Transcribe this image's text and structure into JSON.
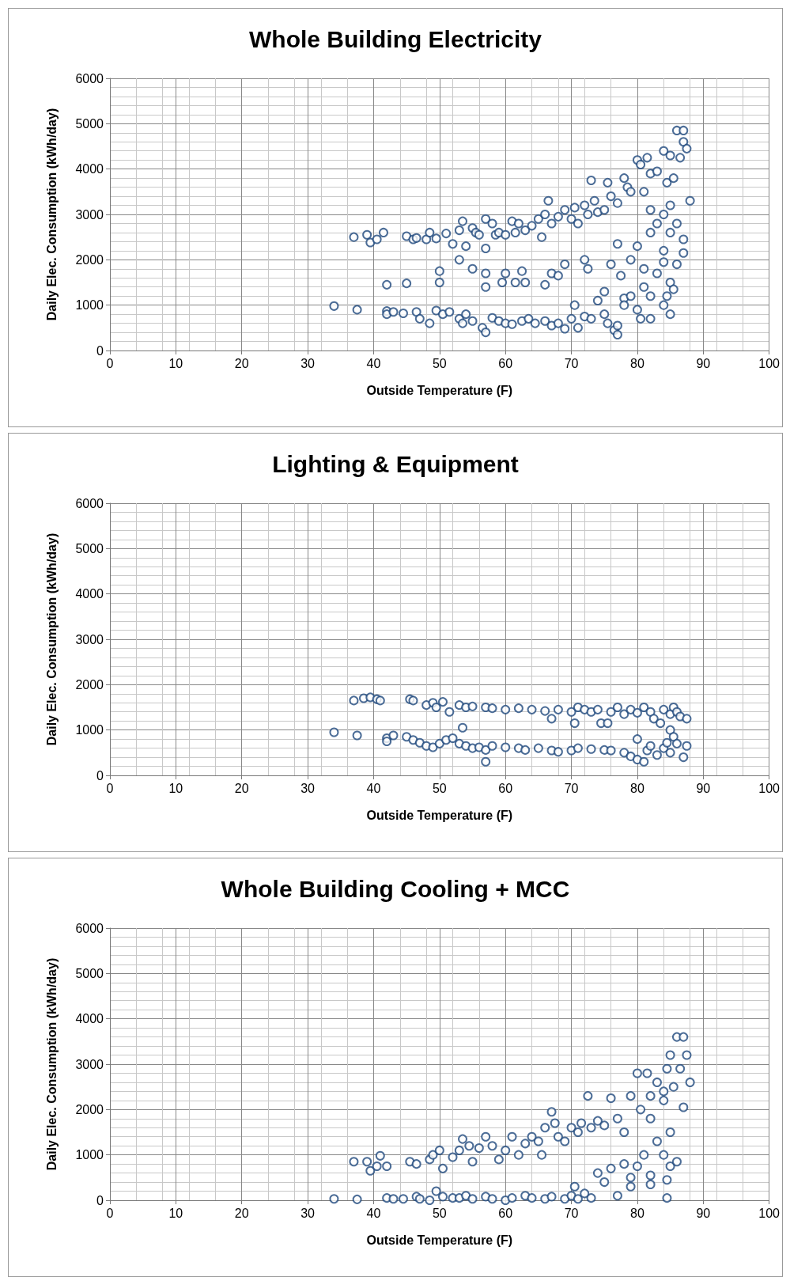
{
  "chart_data": [
    {
      "type": "scatter",
      "title": "Whole Building Electricity",
      "xlabel": "Outside Temperature (F)",
      "ylabel": "Daily Elec. Consumption (kWh/day)",
      "xlim": [
        0,
        100
      ],
      "ylim": [
        0,
        6000
      ],
      "xticks": [
        0,
        10,
        20,
        30,
        40,
        50,
        60,
        70,
        80,
        90,
        100
      ],
      "yticks": [
        0,
        1000,
        2000,
        3000,
        4000,
        5000,
        6000
      ],
      "grid": true,
      "marker": "circle",
      "color": "#1f497d",
      "x": [
        37,
        39,
        39.5,
        40.5,
        41.5,
        45,
        46,
        46.5,
        48,
        48.5,
        49.5,
        51,
        52,
        53,
        53.5,
        54,
        55,
        55.5,
        56,
        57,
        57,
        58,
        58.5,
        59,
        60,
        61,
        61.5,
        62,
        63,
        64,
        65,
        65.5,
        66,
        66.5,
        67,
        68,
        69,
        70,
        70.5,
        71,
        72,
        72.5,
        73,
        73.5,
        74,
        75,
        75.5,
        76,
        77,
        78,
        78.5,
        79,
        80,
        80.5,
        81.5,
        82,
        82,
        83,
        84,
        84.5,
        85,
        85.5,
        86,
        86.5,
        87,
        87,
        87.5,
        88,
        85,
        84,
        83,
        82,
        81,
        86,
        85,
        84,
        87,
        87,
        42,
        45,
        50,
        50,
        53,
        55,
        57,
        57,
        59.5,
        60,
        61.5,
        62.5,
        63,
        66,
        67,
        68,
        69,
        72,
        72.5,
        75,
        76,
        77,
        77.5,
        78,
        79,
        80,
        81,
        81,
        82,
        83,
        84,
        85,
        85.5,
        86,
        84.5,
        34,
        37.5,
        42,
        42,
        43,
        44.5,
        46.5,
        47,
        48.5,
        49.5,
        50.5,
        51.5,
        53,
        53.5,
        54,
        55,
        56.5,
        57,
        58,
        59,
        60,
        61,
        62.5,
        63.5,
        64.5,
        66,
        67,
        68,
        69,
        70,
        70.5,
        71,
        72,
        73,
        74,
        75,
        75.5,
        76.5,
        77,
        77,
        78,
        79,
        80,
        80.5,
        82,
        85,
        84
      ],
      "values": [
        2500,
        2550,
        2380,
        2450,
        2600,
        2520,
        2450,
        2480,
        2450,
        2600,
        2470,
        2580,
        2350,
        2650,
        2850,
        2300,
        2700,
        2600,
        2550,
        2900,
        2250,
        2800,
        2550,
        2600,
        2550,
        2850,
        2600,
        2800,
        2650,
        2750,
        2900,
        2500,
        3000,
        3300,
        2800,
        2950,
        3100,
        2900,
        3150,
        2800,
        3200,
        3000,
        3750,
        3300,
        3050,
        3100,
        3700,
        3400,
        3250,
        3800,
        3600,
        3500,
        4200,
        4100,
        4250,
        3900,
        2600,
        3950,
        4400,
        3700,
        4300,
        3800,
        4850,
        4250,
        4600,
        4850,
        4450,
        3300,
        3200,
        3000,
        2800,
        3100,
        3500,
        2800,
        2600,
        2200,
        2450,
        2150,
        1450,
        1480,
        1750,
        1500,
        2000,
        1800,
        1400,
        1700,
        1500,
        1700,
        1500,
        1750,
        1500,
        1450,
        1700,
        1650,
        1900,
        2000,
        1800,
        1300,
        1900,
        2350,
        1650,
        1150,
        2000,
        2300,
        1800,
        1400,
        1200,
        1700,
        1950,
        1500,
        1350,
        1900,
        1200,
        980,
        900,
        870,
        800,
        850,
        820,
        850,
        700,
        600,
        880,
        800,
        850,
        700,
        600,
        800,
        650,
        500,
        400,
        720,
        650,
        600,
        580,
        650,
        700,
        600,
        650,
        550,
        600,
        480,
        700,
        1000,
        500,
        750,
        700,
        1100,
        800,
        600,
        450,
        550,
        350,
        1000,
        1200,
        900,
        700,
        700,
        800,
        1000
      ]
    },
    {
      "type": "scatter",
      "title": "Lighting & Equipment",
      "xlabel": "Outside Temperature (F)",
      "ylabel": "Daily Elec. Consumption (kWh/day)",
      "xlim": [
        0,
        100
      ],
      "ylim": [
        0,
        6000
      ],
      "xticks": [
        0,
        10,
        20,
        30,
        40,
        50,
        60,
        70,
        80,
        90,
        100
      ],
      "yticks": [
        0,
        1000,
        2000,
        3000,
        4000,
        5000,
        6000
      ],
      "grid": true,
      "marker": "circle",
      "color": "#1f497d",
      "x": [
        37,
        38.5,
        39.5,
        40.5,
        41,
        45.5,
        46,
        48,
        49,
        49.5,
        50.5,
        51.5,
        53,
        54,
        55,
        57,
        58,
        60,
        62,
        64,
        66,
        67,
        68,
        70,
        71,
        72,
        73,
        74,
        74.5,
        76,
        77,
        78,
        79,
        80,
        81,
        82,
        82.5,
        84,
        85,
        85.5,
        86,
        86.5,
        87.5,
        85,
        85.5,
        83.5,
        75.5,
        70.5,
        34,
        37.5,
        42,
        42,
        43,
        45,
        46,
        47,
        48,
        49,
        50,
        51,
        52,
        53,
        53.5,
        54,
        55,
        56,
        57,
        57,
        58,
        60,
        62,
        63,
        65,
        67,
        68,
        70,
        71,
        73,
        75,
        76,
        78,
        79,
        80,
        81,
        81.5,
        82,
        83,
        84,
        85,
        86,
        87,
        87.5,
        80,
        84.5
      ],
      "values": [
        1650,
        1700,
        1720,
        1680,
        1650,
        1680,
        1650,
        1550,
        1600,
        1500,
        1620,
        1400,
        1550,
        1500,
        1520,
        1500,
        1480,
        1450,
        1480,
        1450,
        1420,
        1250,
        1450,
        1400,
        1500,
        1450,
        1400,
        1450,
        1150,
        1400,
        1500,
        1350,
        1450,
        1380,
        1500,
        1400,
        1250,
        1450,
        1350,
        1500,
        1400,
        1300,
        1250,
        1000,
        850,
        1150,
        1150,
        1150,
        950,
        880,
        820,
        750,
        880,
        850,
        780,
        720,
        650,
        620,
        700,
        780,
        820,
        700,
        1050,
        650,
        600,
        620,
        560,
        300,
        650,
        620,
        600,
        560,
        600,
        550,
        520,
        550,
        600,
        580,
        560,
        550,
        500,
        420,
        350,
        300,
        550,
        650,
        450,
        600,
        500,
        700,
        400,
        650,
        800,
        720
      ]
    },
    {
      "type": "scatter",
      "title": "Whole Building Cooling + MCC",
      "xlabel": "Outside Temperature (F)",
      "ylabel": "Daily Elec. Consumption (kWh/day)",
      "xlim": [
        0,
        100
      ],
      "ylim": [
        0,
        6000
      ],
      "xticks": [
        0,
        10,
        20,
        30,
        40,
        50,
        60,
        70,
        80,
        90,
        100
      ],
      "yticks": [
        0,
        1000,
        2000,
        3000,
        4000,
        5000,
        6000
      ],
      "grid": true,
      "marker": "circle",
      "color": "#1f497d",
      "x": [
        37,
        39,
        39.5,
        40.5,
        41,
        42,
        45.5,
        46.5,
        48.5,
        49,
        50,
        50.5,
        52,
        53,
        53.5,
        54.5,
        55,
        56,
        57,
        58,
        59,
        60,
        61,
        62,
        63,
        64,
        65,
        65.5,
        66,
        67,
        67.5,
        68,
        69,
        70,
        71,
        71.5,
        72.5,
        73,
        74,
        75,
        76,
        77,
        78,
        79,
        80,
        80.5,
        81.5,
        82,
        83,
        84,
        84.5,
        85,
        85.5,
        86,
        86.5,
        87,
        87.5,
        88,
        87,
        84,
        82,
        34,
        37.5,
        42,
        43,
        44.5,
        46.5,
        47,
        48.5,
        49.5,
        50.5,
        52,
        53,
        54,
        55,
        57,
        58,
        60,
        61,
        63,
        64,
        66,
        67,
        69,
        70,
        70.5,
        71,
        72,
        73,
        74,
        75,
        76,
        77,
        78,
        79,
        79,
        80,
        81,
        82,
        82,
        83,
        84,
        84.5,
        85,
        84.5,
        86,
        85
      ],
      "values": [
        850,
        850,
        650,
        750,
        980,
        750,
        850,
        800,
        900,
        1000,
        1100,
        700,
        950,
        1100,
        1350,
        1200,
        850,
        1150,
        1400,
        1200,
        900,
        1100,
        1400,
        1000,
        1250,
        1400,
        1300,
        1000,
        1600,
        1950,
        1700,
        1400,
        1300,
        1600,
        1500,
        1700,
        2300,
        1600,
        1750,
        1650,
        2250,
        1800,
        1500,
        2300,
        2800,
        2000,
        2800,
        2300,
        2600,
        2400,
        2900,
        3200,
        2500,
        3600,
        2900,
        3600,
        3200,
        2600,
        2050,
        2200,
        1800,
        30,
        20,
        50,
        30,
        30,
        80,
        30,
        0,
        200,
        80,
        50,
        50,
        100,
        30,
        80,
        30,
        0,
        50,
        100,
        50,
        30,
        80,
        30,
        100,
        300,
        30,
        150,
        50,
        600,
        400,
        700,
        100,
        800,
        500,
        300,
        750,
        1000,
        350,
        550,
        1300,
        1000,
        450,
        750,
        50,
        850,
        1500
      ]
    }
  ]
}
